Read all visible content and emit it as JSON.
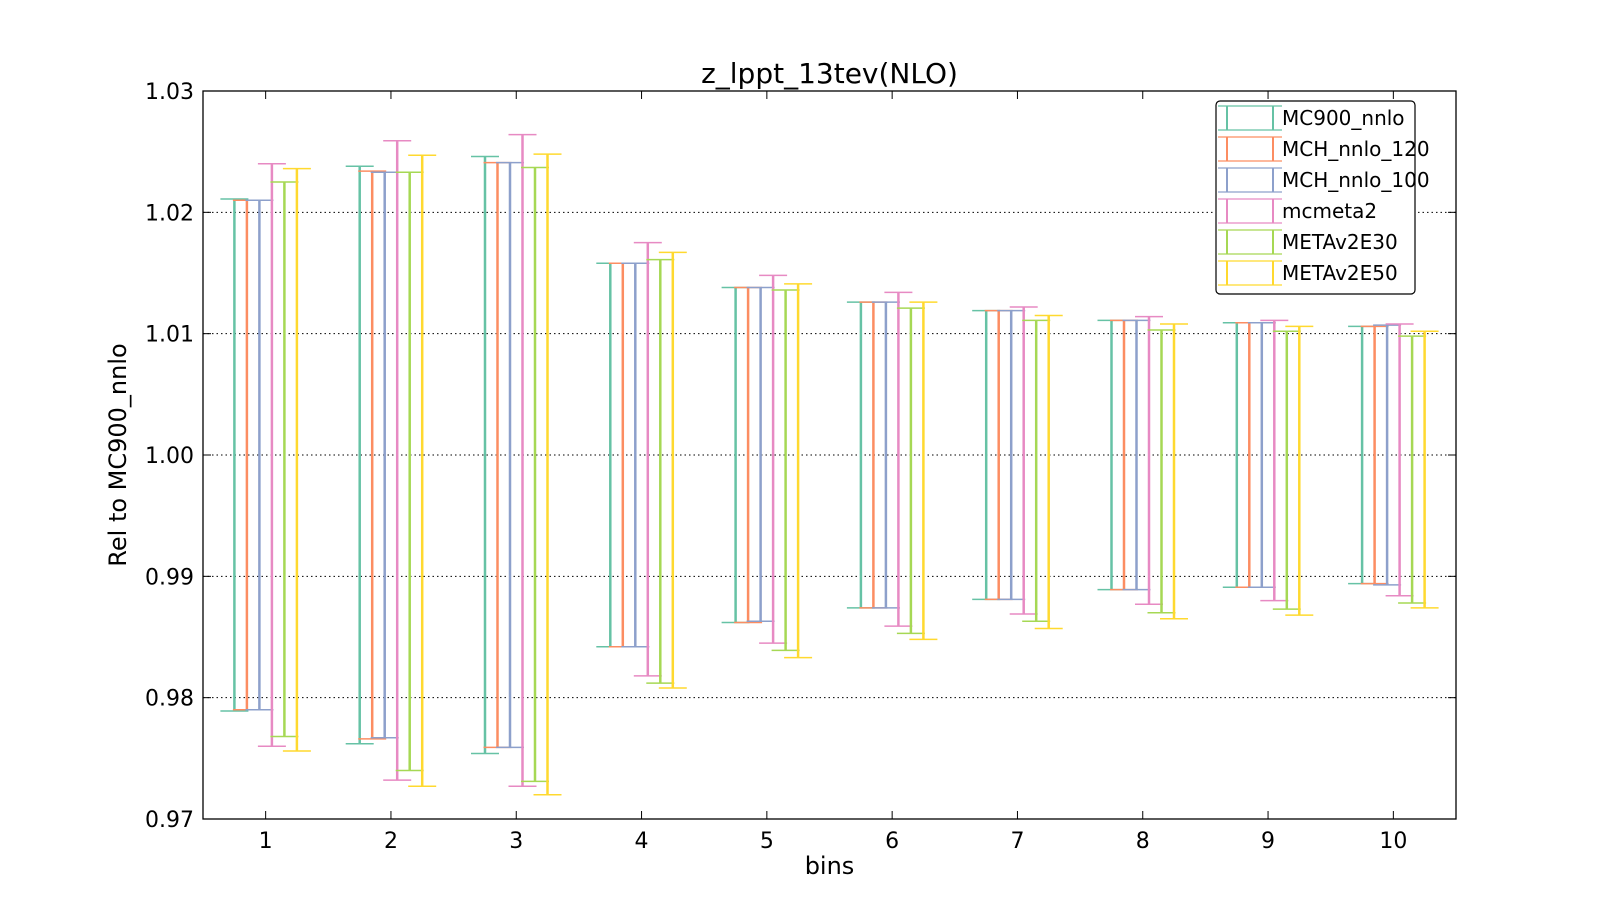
{
  "chart_data": {
    "type": "errorbar",
    "title": "z_lppt_13tev(NLO)",
    "xlabel": "bins",
    "ylabel": "Rel to MC900_nnlo",
    "xlim": [
      0.5,
      10.5
    ],
    "ylim": [
      0.97,
      1.03
    ],
    "yticks": [
      "0.97",
      "0.98",
      "0.99",
      "1.00",
      "1.01",
      "1.02",
      "1.03"
    ],
    "xticks": [
      "1",
      "2",
      "3",
      "4",
      "5",
      "6",
      "7",
      "8",
      "9",
      "10"
    ],
    "grid": "horizontal dotted",
    "legend_position": "top-right",
    "bins": [
      1,
      2,
      3,
      4,
      5,
      6,
      7,
      8,
      9,
      10
    ],
    "series": [
      {
        "name": "MC900_nnlo",
        "color": "#66c2a5",
        "central": [
          1.0,
          1.0,
          1.0,
          1.0,
          1.0,
          1.0,
          1.0,
          1.0,
          1.0,
          1.0
        ],
        "low": [
          0.9789,
          0.9762,
          0.9754,
          0.9842,
          0.9862,
          0.9874,
          0.9881,
          0.9889,
          0.9891,
          0.9894
        ],
        "high": [
          1.0211,
          1.0238,
          1.0246,
          1.0158,
          1.0138,
          1.0126,
          1.0119,
          1.0111,
          1.0109,
          1.0106
        ]
      },
      {
        "name": "MCH_nnlo_120",
        "color": "#fc8d62",
        "central": [
          1.0,
          1.0,
          1.0,
          1.0,
          1.0,
          1.0,
          1.0,
          1.0,
          1.0,
          1.0
        ],
        "low": [
          0.979,
          0.9766,
          0.9759,
          0.9842,
          0.9862,
          0.9874,
          0.9881,
          0.9889,
          0.9891,
          0.9894
        ],
        "high": [
          1.021,
          1.0234,
          1.0241,
          1.0158,
          1.0138,
          1.0126,
          1.0119,
          1.0111,
          1.0109,
          1.0106
        ]
      },
      {
        "name": "MCH_nnlo_100",
        "color": "#8da0cb",
        "central": [
          1.0,
          1.0,
          1.0,
          1.0,
          1.0,
          1.0,
          1.0,
          1.0,
          1.0,
          1.0
        ],
        "low": [
          0.979,
          0.9767,
          0.9759,
          0.9842,
          0.9863,
          0.9874,
          0.9881,
          0.9889,
          0.9891,
          0.9893
        ],
        "high": [
          1.021,
          1.0233,
          1.0241,
          1.0158,
          1.0138,
          1.0126,
          1.0119,
          1.0111,
          1.0109,
          1.0107
        ]
      },
      {
        "name": "mcmeta2",
        "color": "#e78ac3",
        "central": [
          1.0,
          1.0,
          1.0,
          1.0,
          1.0,
          1.0,
          1.0,
          1.0,
          1.0,
          1.0
        ],
        "low": [
          0.976,
          0.9732,
          0.9727,
          0.9818,
          0.9845,
          0.9859,
          0.9869,
          0.9877,
          0.988,
          0.9884
        ],
        "high": [
          1.024,
          1.0259,
          1.0264,
          1.0175,
          1.0148,
          1.0134,
          1.0122,
          1.0114,
          1.0111,
          1.0108
        ]
      },
      {
        "name": "METAv2E30",
        "color": "#a6d854",
        "central": [
          1.0,
          1.0,
          1.0,
          1.0,
          1.0,
          1.0,
          1.0,
          1.0,
          1.0,
          1.0
        ],
        "low": [
          0.9768,
          0.974,
          0.9731,
          0.9812,
          0.9839,
          0.9853,
          0.9863,
          0.987,
          0.9873,
          0.9878
        ],
        "high": [
          1.0225,
          1.0233,
          1.0237,
          1.0161,
          1.0136,
          1.0121,
          1.0111,
          1.0103,
          1.0102,
          1.0098
        ]
      },
      {
        "name": "METAv2E50",
        "color": "#ffd92f",
        "central": [
          1.0,
          1.0,
          1.0,
          1.0,
          1.0,
          1.0,
          1.0,
          1.0,
          1.0,
          1.0
        ],
        "low": [
          0.9756,
          0.9727,
          0.972,
          0.9808,
          0.9833,
          0.9848,
          0.9857,
          0.9865,
          0.9868,
          0.9874
        ],
        "high": [
          1.0236,
          1.0247,
          1.0248,
          1.0167,
          1.0141,
          1.0126,
          1.0115,
          1.0108,
          1.0106,
          1.0102
        ]
      }
    ]
  }
}
